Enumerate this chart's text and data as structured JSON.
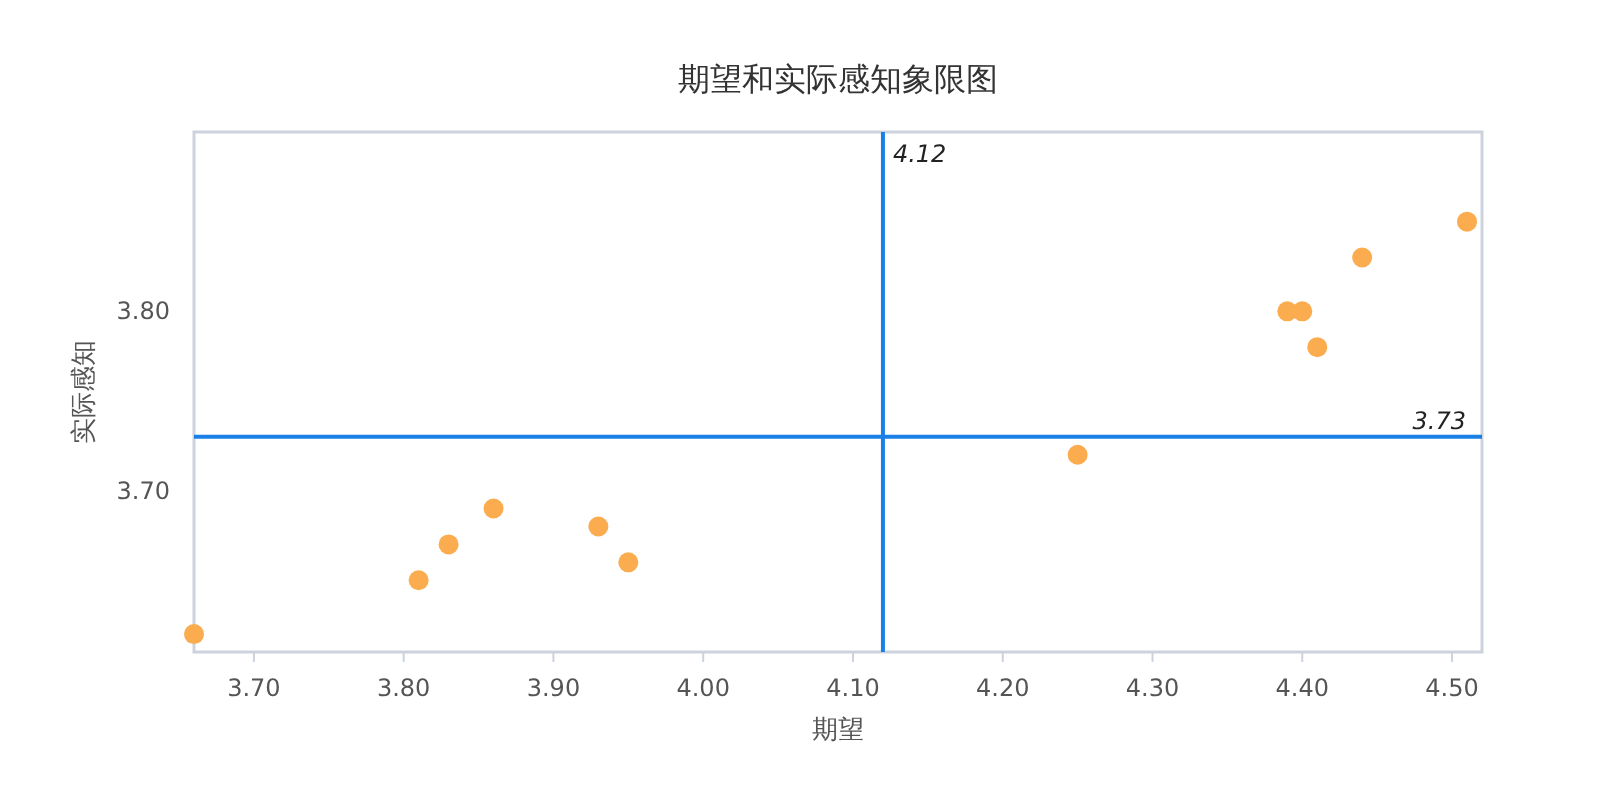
{
  "chart_data": {
    "type": "scatter",
    "title": "期望和实际感知象限图",
    "xlabel": "期望",
    "ylabel": "实际感知",
    "x": [
      3.66,
      3.81,
      3.83,
      3.86,
      3.93,
      3.95,
      4.25,
      4.39,
      4.4,
      4.41,
      4.44,
      4.51
    ],
    "series": [
      {
        "color": "#fbac4e",
        "values": [
          3.62,
          3.65,
          3.67,
          3.69,
          3.68,
          3.66,
          3.72,
          3.8,
          3.8,
          3.78,
          3.83,
          3.85
        ]
      }
    ],
    "xlim": [
      3.66,
      4.52
    ],
    "ylim": [
      3.61,
      3.9
    ],
    "xticks": [
      {
        "value": 3.7,
        "label": "3.70"
      },
      {
        "value": 3.8,
        "label": "3.80"
      },
      {
        "value": 3.9,
        "label": "3.90"
      },
      {
        "value": 4.0,
        "label": "4.00"
      },
      {
        "value": 4.1,
        "label": "4.10"
      },
      {
        "value": 4.2,
        "label": "4.20"
      },
      {
        "value": 4.3,
        "label": "4.30"
      },
      {
        "value": 4.4,
        "label": "4.40"
      },
      {
        "value": 4.5,
        "label": "4.50"
      }
    ],
    "yticks": [
      {
        "value": 3.7,
        "label": "3.70"
      },
      {
        "value": 3.8,
        "label": "3.80"
      }
    ],
    "ref_lines": [
      {
        "axis": "x",
        "value": 4.12,
        "label": "4.12",
        "color": "#1a80e6"
      },
      {
        "axis": "y",
        "value": 3.73,
        "label": "3.73",
        "color": "#1a80e6"
      }
    ],
    "grid": false,
    "marker": "circle"
  }
}
